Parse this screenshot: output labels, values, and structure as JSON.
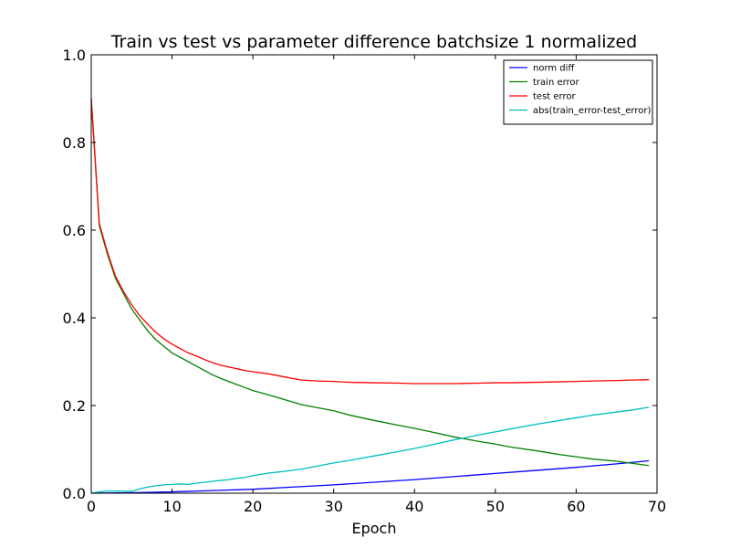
{
  "chart_data": {
    "type": "line",
    "title": "Train vs test vs parameter difference batchsize 1 normalized",
    "xlabel": "Epoch",
    "ylabel": "",
    "xlim": [
      0,
      70
    ],
    "ylim": [
      0.0,
      1.0
    ],
    "xticks": [
      "0",
      "10",
      "20",
      "30",
      "40",
      "50",
      "60",
      "70"
    ],
    "yticks": [
      "0.0",
      "0.2",
      "0.4",
      "0.6",
      "0.8",
      "1.0"
    ],
    "grid": false,
    "legend_position": "top-right",
    "series": [
      {
        "name": "norm diff",
        "color": "#0000ff",
        "x": [
          0,
          5,
          10,
          15,
          20,
          25,
          30,
          35,
          40,
          45,
          50,
          55,
          60,
          65,
          69
        ],
        "values": [
          0.0,
          0.001,
          0.003,
          0.006,
          0.009,
          0.014,
          0.019,
          0.025,
          0.031,
          0.038,
          0.045,
          0.052,
          0.059,
          0.067,
          0.074
        ]
      },
      {
        "name": "train error",
        "color": "#008000",
        "x": [
          0,
          1,
          2,
          3,
          4,
          5,
          6,
          7,
          8,
          9,
          10,
          11,
          12,
          13,
          14,
          15,
          16,
          17,
          18,
          19,
          20,
          22,
          24,
          26,
          28,
          30,
          32,
          35,
          38,
          40,
          42,
          45,
          48,
          50,
          52,
          55,
          58,
          60,
          62,
          65,
          67,
          69
        ],
        "values": [
          0.9,
          0.61,
          0.545,
          0.49,
          0.455,
          0.42,
          0.395,
          0.37,
          0.35,
          0.335,
          0.32,
          0.31,
          0.3,
          0.29,
          0.28,
          0.27,
          0.262,
          0.255,
          0.248,
          0.241,
          0.234,
          0.224,
          0.213,
          0.202,
          0.195,
          0.188,
          0.178,
          0.166,
          0.155,
          0.148,
          0.14,
          0.128,
          0.118,
          0.112,
          0.105,
          0.097,
          0.088,
          0.083,
          0.078,
          0.073,
          0.068,
          0.063
        ]
      },
      {
        "name": "test error",
        "color": "#ff0000",
        "x": [
          0,
          1,
          2,
          3,
          4,
          5,
          6,
          7,
          8,
          9,
          10,
          11,
          12,
          13,
          14,
          15,
          16,
          17,
          18,
          19,
          20,
          22,
          24,
          26,
          28,
          30,
          32,
          35,
          38,
          40,
          42,
          45,
          48,
          50,
          52,
          55,
          58,
          60,
          62,
          65,
          67,
          69
        ],
        "values": [
          0.9,
          0.615,
          0.55,
          0.495,
          0.46,
          0.43,
          0.405,
          0.385,
          0.367,
          0.352,
          0.34,
          0.33,
          0.32,
          0.313,
          0.305,
          0.298,
          0.292,
          0.288,
          0.284,
          0.28,
          0.277,
          0.272,
          0.265,
          0.258,
          0.256,
          0.255,
          0.253,
          0.252,
          0.251,
          0.25,
          0.25,
          0.25,
          0.251,
          0.252,
          0.252,
          0.253,
          0.254,
          0.255,
          0.256,
          0.257,
          0.258,
          0.259
        ]
      },
      {
        "name": "abs(train_error-test_error)",
        "color": "#00bfbf",
        "x": [
          0,
          1,
          2,
          3,
          4,
          5,
          6,
          7,
          8,
          9,
          10,
          11,
          12,
          13,
          14,
          15,
          16,
          17,
          18,
          19,
          20,
          22,
          24,
          26,
          28,
          30,
          32,
          35,
          38,
          40,
          42,
          45,
          48,
          50,
          52,
          55,
          58,
          60,
          62,
          65,
          67,
          69
        ],
        "values": [
          0.0,
          0.003,
          0.005,
          0.005,
          0.005,
          0.004,
          0.01,
          0.014,
          0.017,
          0.019,
          0.02,
          0.021,
          0.02,
          0.023,
          0.025,
          0.027,
          0.029,
          0.031,
          0.034,
          0.036,
          0.04,
          0.046,
          0.05,
          0.055,
          0.062,
          0.069,
          0.075,
          0.085,
          0.095,
          0.102,
          0.11,
          0.122,
          0.133,
          0.14,
          0.147,
          0.157,
          0.166,
          0.172,
          0.178,
          0.185,
          0.19,
          0.196
        ]
      }
    ]
  }
}
